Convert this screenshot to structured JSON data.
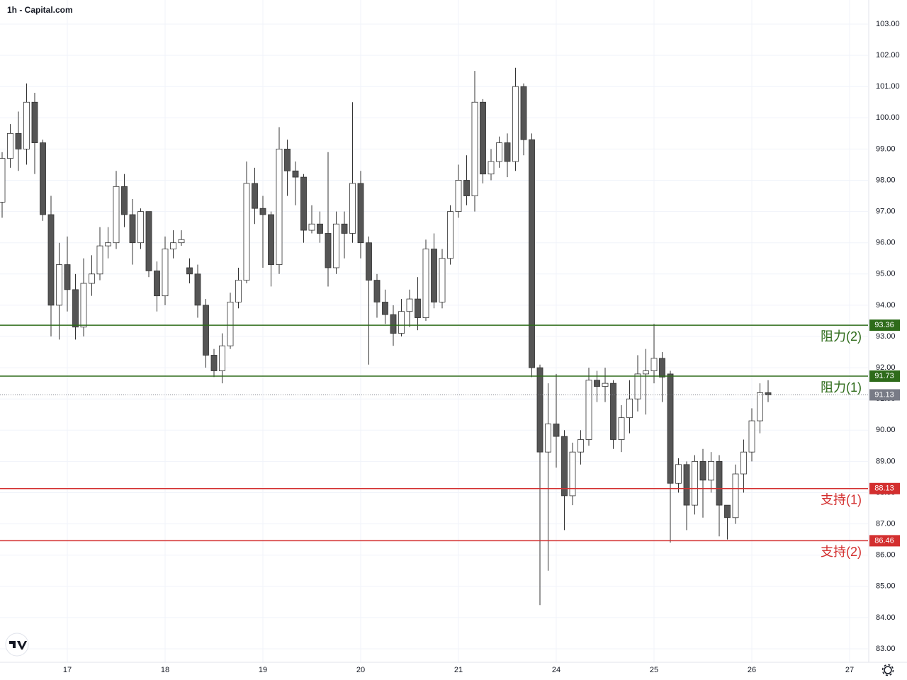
{
  "chart_data": {
    "type": "candlestick",
    "title": "1h - Capital.com",
    "open": [
      97.3,
      98.7,
      99.5,
      99.0,
      100.5,
      99.2,
      96.9,
      94.0,
      95.3,
      94.5,
      93.3,
      94.7,
      95.0,
      95.9,
      96.0,
      97.8,
      96.9,
      96.0,
      97.0,
      95.1,
      94.3,
      95.8,
      96.0,
      95.2,
      95.0,
      94.0,
      92.4,
      91.9,
      92.7,
      94.1,
      94.8,
      97.9,
      97.1,
      96.9,
      95.3,
      99.0,
      98.3,
      98.1,
      96.4,
      96.6,
      96.3,
      95.2,
      96.6,
      96.3,
      97.9,
      96.0,
      94.8,
      94.1,
      93.7,
      93.1,
      93.8,
      94.2,
      93.6,
      95.8,
      94.1,
      95.5,
      97.0,
      98.0,
      97.5,
      100.5,
      98.2,
      98.6,
      99.2,
      98.6,
      101.0,
      99.3,
      92.0,
      89.3,
      90.2,
      89.8,
      87.9,
      89.3,
      89.7,
      91.6,
      91.4,
      91.5,
      89.7,
      90.4,
      91.0,
      91.8,
      91.9,
      92.3,
      91.8,
      88.3,
      88.9,
      87.6,
      89.0,
      88.4,
      89.0,
      87.6,
      87.2,
      88.6,
      89.3,
      90.3,
      91.2
    ],
    "high": [
      98.9,
      99.8,
      100.2,
      101.1,
      100.8,
      99.3,
      97.5,
      96.0,
      96.2,
      95.0,
      95.5,
      95.6,
      96.5,
      96.5,
      98.3,
      98.2,
      97.4,
      97.1,
      97.0,
      95.4,
      96.2,
      96.4,
      96.4,
      95.5,
      95.3,
      94.2,
      92.6,
      93.1,
      94.4,
      95.2,
      98.6,
      98.4,
      97.5,
      97.0,
      99.7,
      99.3,
      98.6,
      98.2,
      97.2,
      97.0,
      98.9,
      97.0,
      97.0,
      100.5,
      98.3,
      96.2,
      95.0,
      94.5,
      94.0,
      94.2,
      94.5,
      94.9,
      96.1,
      96.3,
      95.8,
      97.2,
      98.5,
      98.8,
      101.5,
      100.6,
      99.0,
      99.4,
      99.5,
      101.6,
      101.1,
      99.5,
      92.1,
      91.5,
      91.8,
      90.0,
      89.6,
      90.0,
      92.0,
      91.9,
      92.0,
      91.6,
      90.8,
      91.6,
      92.4,
      92.6,
      93.4,
      92.5,
      91.9,
      89.1,
      89.0,
      89.2,
      89.4,
      89.3,
      89.2,
      87.6,
      88.9,
      89.7,
      90.7,
      91.5,
      91.6
    ],
    "low": [
      96.8,
      98.4,
      98.3,
      98.5,
      98.2,
      96.7,
      93.0,
      92.9,
      93.8,
      92.9,
      93.0,
      94.3,
      94.8,
      95.5,
      95.8,
      96.5,
      95.3,
      95.8,
      94.9,
      93.8,
      94.0,
      95.5,
      95.9,
      94.7,
      93.6,
      92.0,
      91.7,
      91.5,
      92.6,
      93.9,
      94.7,
      96.6,
      95.2,
      94.6,
      95.0,
      97.5,
      97.2,
      96.0,
      96.3,
      96.0,
      94.6,
      95.0,
      95.5,
      96.0,
      95.5,
      92.1,
      93.6,
      93.4,
      92.7,
      93.0,
      93.3,
      93.2,
      93.5,
      93.9,
      93.9,
      95.3,
      96.8,
      97.2,
      97.0,
      97.9,
      98.0,
      98.4,
      98.1,
      98.3,
      98.8,
      91.7,
      84.4,
      85.5,
      88.8,
      86.8,
      87.6,
      88.9,
      89.5,
      90.9,
      90.9,
      89.4,
      89.3,
      89.9,
      90.6,
      90.5,
      91.5,
      90.9,
      86.4,
      88.0,
      86.8,
      87.3,
      87.2,
      88.0,
      86.6,
      86.5,
      87.0,
      88.0,
      89.0,
      89.9,
      90.9
    ],
    "close": [
      98.7,
      99.5,
      99.0,
      100.5,
      99.2,
      96.9,
      94.0,
      95.3,
      94.5,
      93.3,
      94.7,
      95.0,
      95.9,
      96.0,
      97.8,
      96.9,
      96.0,
      97.0,
      95.1,
      94.3,
      95.8,
      96.0,
      96.1,
      95.0,
      94.0,
      92.4,
      91.9,
      92.7,
      94.1,
      94.8,
      97.9,
      97.1,
      96.9,
      95.3,
      99.0,
      98.3,
      98.1,
      96.4,
      96.6,
      96.3,
      95.2,
      96.6,
      96.3,
      97.9,
      96.0,
      94.8,
      94.1,
      93.7,
      93.1,
      93.8,
      94.2,
      93.6,
      95.8,
      94.1,
      95.5,
      97.0,
      98.0,
      97.5,
      100.5,
      98.2,
      98.6,
      99.2,
      98.6,
      101.0,
      99.3,
      92.0,
      89.3,
      90.2,
      89.8,
      87.9,
      89.3,
      89.7,
      91.6,
      91.4,
      91.5,
      89.7,
      90.4,
      91.0,
      91.8,
      91.9,
      92.3,
      91.7,
      88.3,
      88.9,
      87.6,
      89.0,
      88.4,
      89.0,
      87.6,
      87.2,
      88.6,
      89.3,
      90.3,
      91.2,
      91.13
    ],
    "up_color": "#ffffff",
    "down_color": "#555555",
    "wick_color": "#333333",
    "xlim": [
      -0.26,
      106.26
    ],
    "xticks": [
      {
        "value": 8,
        "label": "17"
      },
      {
        "value": 20,
        "label": "18"
      },
      {
        "value": 32,
        "label": "19"
      },
      {
        "value": 44,
        "label": "20"
      },
      {
        "value": 56,
        "label": "21"
      },
      {
        "value": 68,
        "label": "24"
      },
      {
        "value": 80,
        "label": "25"
      },
      {
        "value": 92,
        "label": "26"
      },
      {
        "value": 104,
        "label": "27"
      }
    ],
    "ylim": [
      83,
      103
    ],
    "yticks": [
      {
        "value": 83,
        "label": "83.00"
      },
      {
        "value": 84,
        "label": "84.00"
      },
      {
        "value": 85,
        "label": "85.00"
      },
      {
        "value": 86,
        "label": "86.00"
      },
      {
        "value": 87,
        "label": "87.00"
      },
      {
        "value": 88,
        "label": "88.00"
      },
      {
        "value": 89,
        "label": "89.00"
      },
      {
        "value": 90,
        "label": "90.00"
      },
      {
        "value": 91,
        "label": "91.00"
      },
      {
        "value": 92,
        "label": "92.00"
      },
      {
        "value": 93,
        "label": "93.00"
      },
      {
        "value": 94,
        "label": "94.00"
      },
      {
        "value": 95,
        "label": "95.00"
      },
      {
        "value": 96,
        "label": "96.00"
      },
      {
        "value": 97,
        "label": "97.00"
      },
      {
        "value": 98,
        "label": "98.00"
      },
      {
        "value": 99,
        "label": "99.00"
      },
      {
        "value": 100,
        "label": "100.00"
      },
      {
        "value": 101,
        "label": "101.00"
      },
      {
        "value": 102,
        "label": "102.00"
      },
      {
        "value": 103,
        "label": "103.00"
      }
    ],
    "grid": true,
    "current_price": {
      "value": 91.13,
      "color": "#787b86"
    },
    "levels": [
      {
        "value": 93.36,
        "label": "阻力(2)",
        "color": "#2e6b1a"
      },
      {
        "value": 91.73,
        "label": "阻力(1)",
        "color": "#2e6b1a"
      },
      {
        "value": 88.13,
        "label": "支持(1)",
        "color": "#d32f2f"
      },
      {
        "value": 86.46,
        "label": "支持(2)",
        "color": "#d32f2f"
      }
    ]
  }
}
